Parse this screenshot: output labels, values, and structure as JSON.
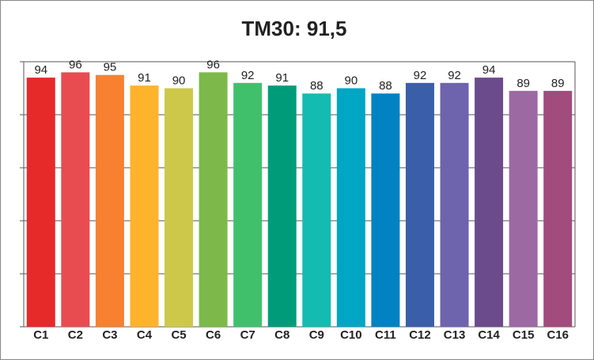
{
  "chart_data": {
    "type": "bar",
    "title": "TM30: 91,5",
    "categories": [
      "C1",
      "C2",
      "C3",
      "C4",
      "C5",
      "C6",
      "C7",
      "C8",
      "C9",
      "C10",
      "C11",
      "C12",
      "C13",
      "C14",
      "C15",
      "C16"
    ],
    "values": [
      94,
      96,
      95,
      91,
      90,
      96,
      92,
      91,
      88,
      90,
      88,
      92,
      92,
      94,
      89,
      89
    ],
    "colors": [
      "#e62a2a",
      "#e84c50",
      "#f78130",
      "#fdb32b",
      "#cdc84a",
      "#7cb94a",
      "#41c06c",
      "#009c79",
      "#14bbb0",
      "#00a6c4",
      "#0082c3",
      "#3b5ea8",
      "#6e63ad",
      "#6b4b8b",
      "#9d69a3",
      "#a24b7d"
    ],
    "ylim": [
      0,
      100
    ],
    "yticks": [
      0,
      20,
      40,
      60,
      80,
      100
    ],
    "grid": true
  }
}
